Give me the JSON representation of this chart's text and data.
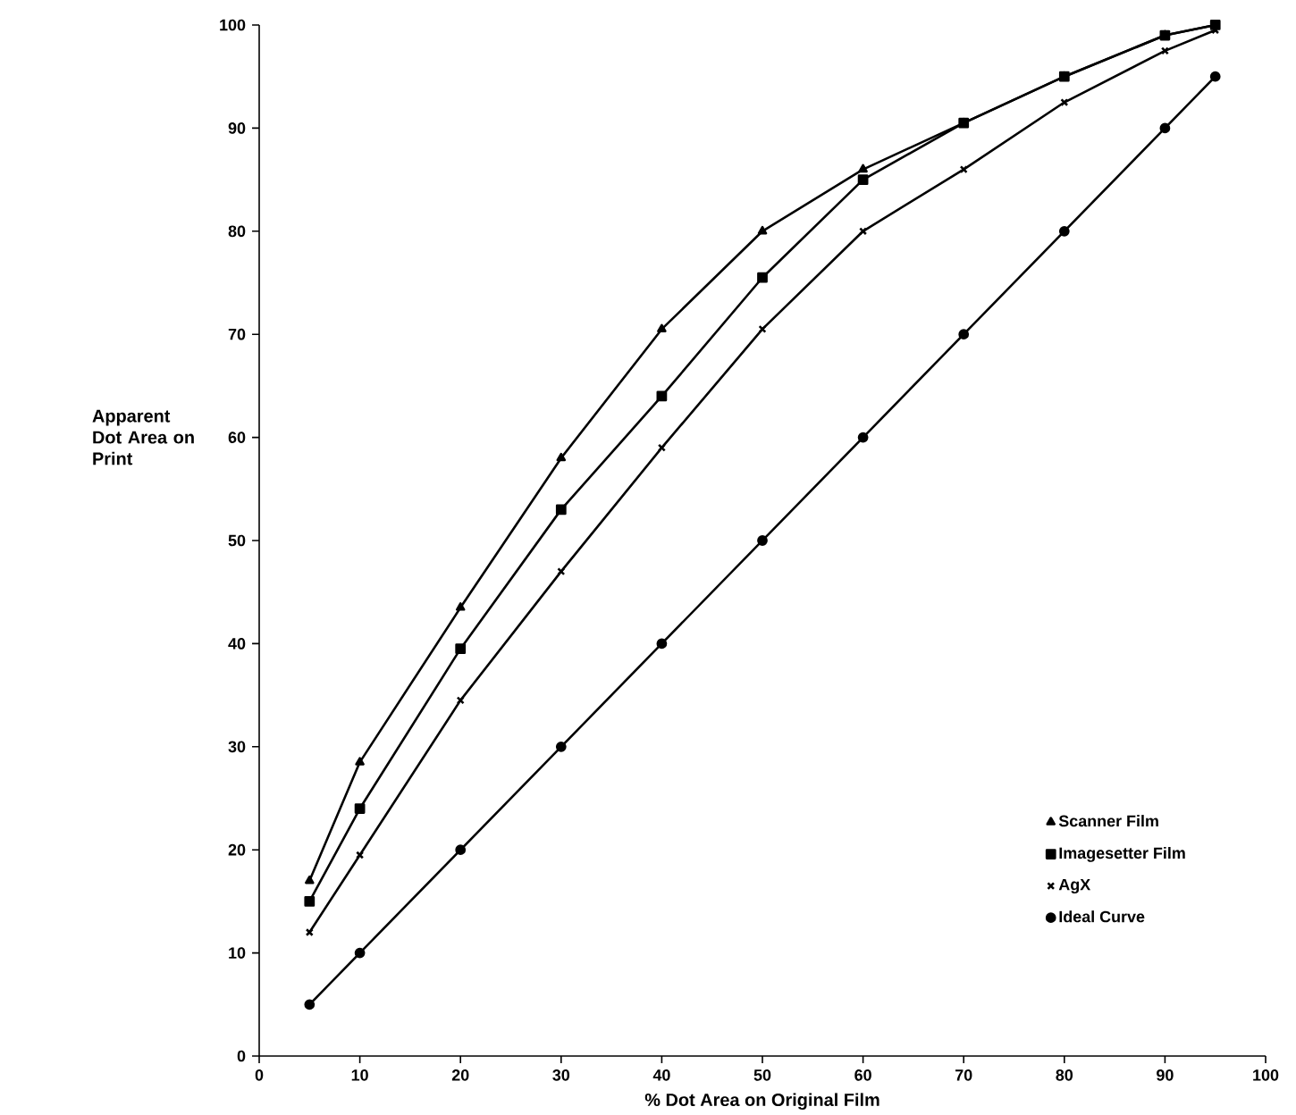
{
  "chart_data": {
    "type": "line",
    "xlabel": "% Dot Area on Original Film",
    "ylabel": "Apparent Dot Area on Print",
    "xlim": [
      0,
      100
    ],
    "ylim": [
      0,
      100
    ],
    "xticks": [
      0,
      10,
      20,
      30,
      40,
      50,
      60,
      70,
      80,
      90,
      100
    ],
    "yticks": [
      0,
      10,
      20,
      30,
      40,
      50,
      60,
      70,
      80,
      90,
      100
    ],
    "grid": false,
    "legend": "bottom right",
    "line_style": "solid",
    "series": [
      {
        "name": "Scanner Film",
        "color": "#000000",
        "marker": "triangle",
        "x": [
          5,
          10,
          20,
          30,
          40,
          50,
          60,
          70,
          80,
          90,
          95
        ],
        "values": [
          17,
          28.5,
          43.5,
          58,
          70.5,
          80,
          86,
          90.5,
          95,
          99,
          100
        ]
      },
      {
        "name": "Imagesetter Film",
        "color": "#000000",
        "marker": "square",
        "x": [
          5,
          10,
          20,
          30,
          40,
          50,
          60,
          70,
          80,
          90,
          95
        ],
        "values": [
          15,
          24,
          39.5,
          53,
          64,
          75.5,
          85,
          90.5,
          95,
          99,
          100
        ]
      },
      {
        "name": "AgX",
        "color": "#000000",
        "marker": "cross",
        "x": [
          5,
          10,
          20,
          30,
          40,
          50,
          60,
          70,
          80,
          90,
          95
        ],
        "values": [
          12,
          19.5,
          34.5,
          47,
          59,
          70.5,
          80,
          86,
          92.5,
          97.5,
          99.5
        ]
      },
      {
        "name": "Ideal Curve",
        "color": "#000000",
        "marker": "circle",
        "x": [
          5,
          10,
          20,
          30,
          40,
          50,
          60,
          70,
          80,
          90,
          95
        ],
        "values": [
          5,
          10,
          20,
          30,
          40,
          50,
          60,
          70,
          80,
          90,
          95
        ]
      }
    ]
  }
}
